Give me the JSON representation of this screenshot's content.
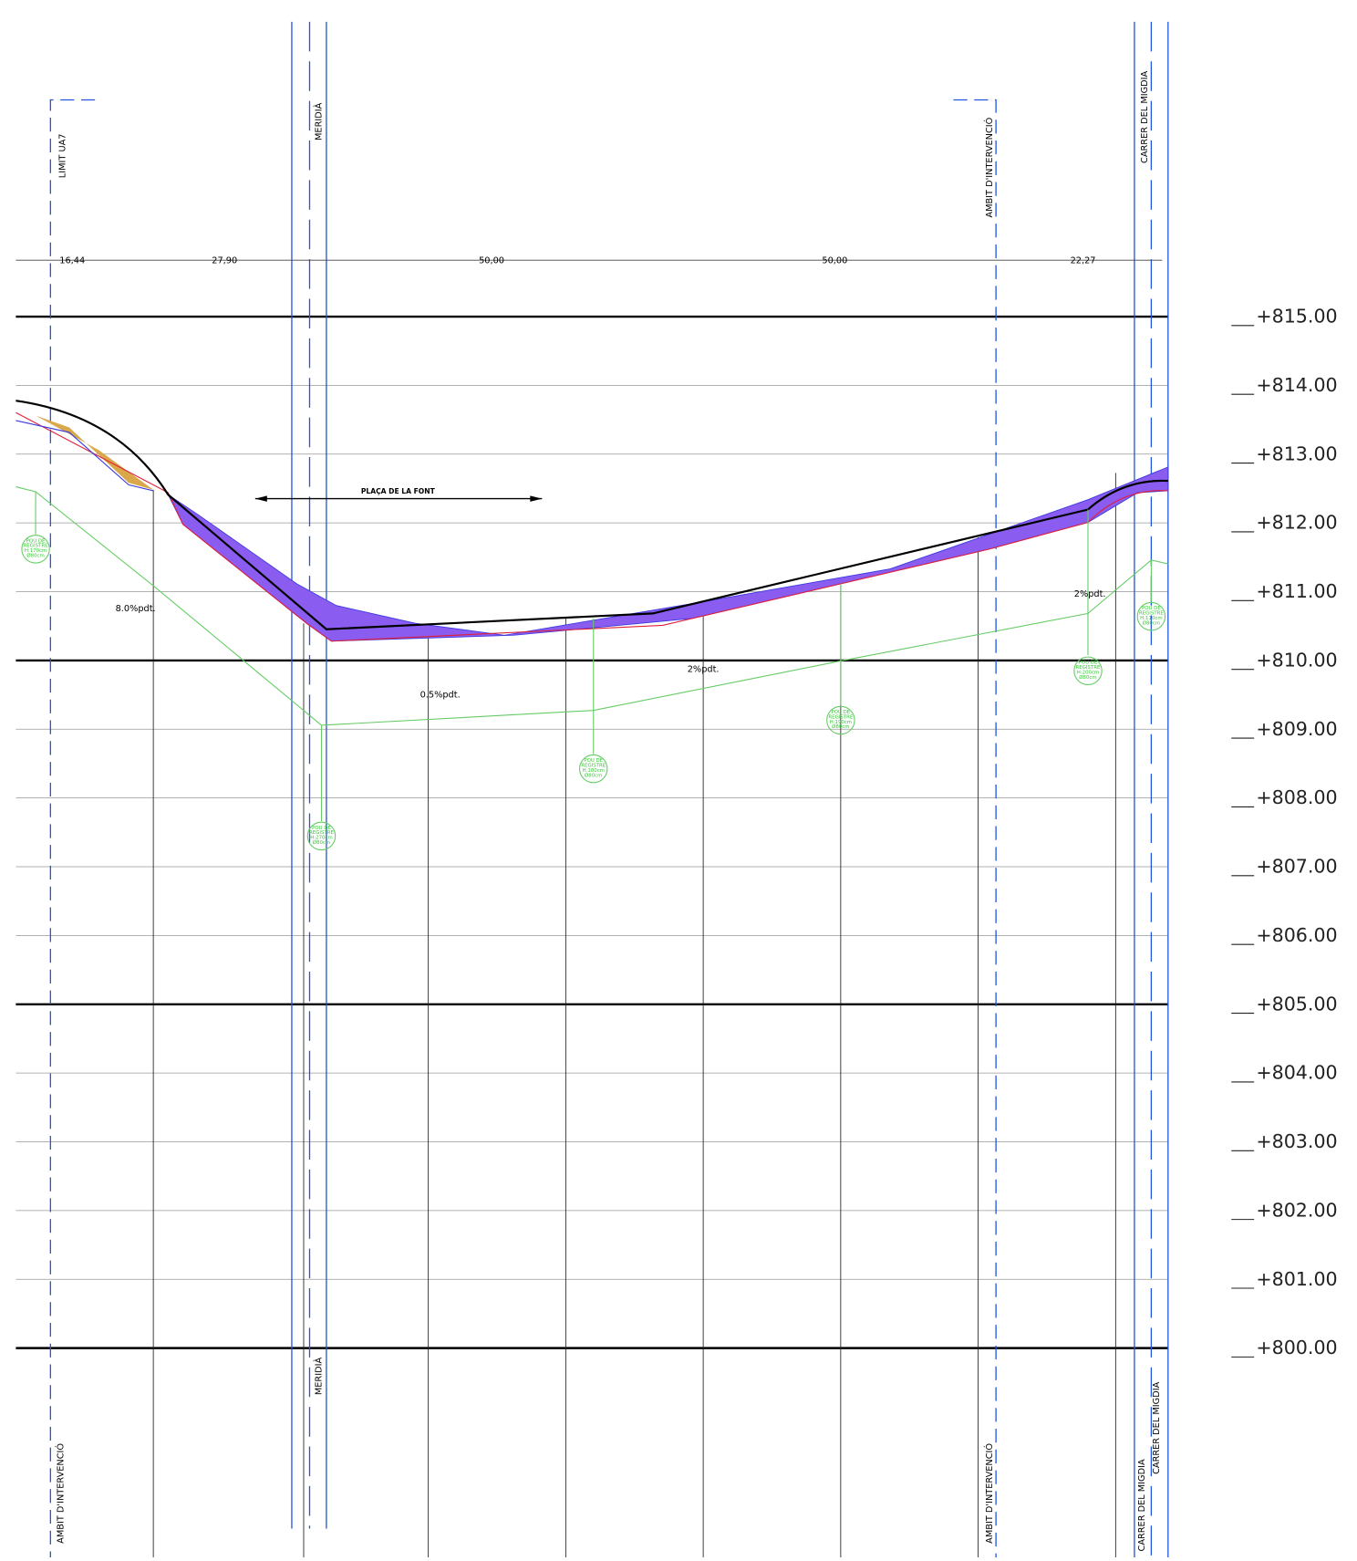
{
  "labels": {
    "limit_ua7": "LIMIT UA7",
    "meridia_top": "MERIDIÀ",
    "ambit_top": "AMBIT D'INTERVENCIÓ",
    "migdia_top": "CARRER DEL MIGDIA",
    "meridia_bottom": "MERIDIÀ",
    "ambit_bottom_left": "AMBIT D'INTERVENCIÓ",
    "ambit_bottom_right": "AMBIT D'INTERVENCIÓ",
    "migdia_bottom_1": "CARRER DEL MIGDIA",
    "migdia_bottom_2": "CARRER DEL MIGDIA"
  },
  "distances": [
    "16,44",
    "27,90",
    "50,00",
    "50,00",
    "22,27"
  ],
  "plaza": "PLAÇA DE LA FONT",
  "slopes": [
    "8.0%pdt.",
    "0.5%pdt.",
    "2%pdt.",
    "2%pdt."
  ],
  "manholes": [
    [
      "POU DE",
      "REGISTRE",
      "H:170cm",
      "Ø80cm"
    ],
    [
      "POU DE",
      "REGISTRE",
      "H:270cm",
      "Ø80cm"
    ],
    [
      "POU DE",
      "REGISTRE",
      "H:180cm",
      "Ø80cm"
    ],
    [
      "POU DE",
      "REGISTRE",
      "H:190cm",
      "Ø80cm"
    ],
    [
      "POU DE",
      "REGISTRE",
      "H:200cm",
      "Ø80cm"
    ],
    [
      "POU DE",
      "REGISTRE",
      "H:110cm",
      "Ø80cm"
    ]
  ],
  "elevations": [
    "+815.00",
    "+814.00",
    "+813.00",
    "+812.00",
    "+811.00",
    "+810.00",
    "+809.00",
    "+808.00",
    "+807.00",
    "+806.00",
    "+805.00",
    "+804.00",
    "+803.00",
    "+802.00",
    "+801.00",
    "+800.00"
  ]
}
